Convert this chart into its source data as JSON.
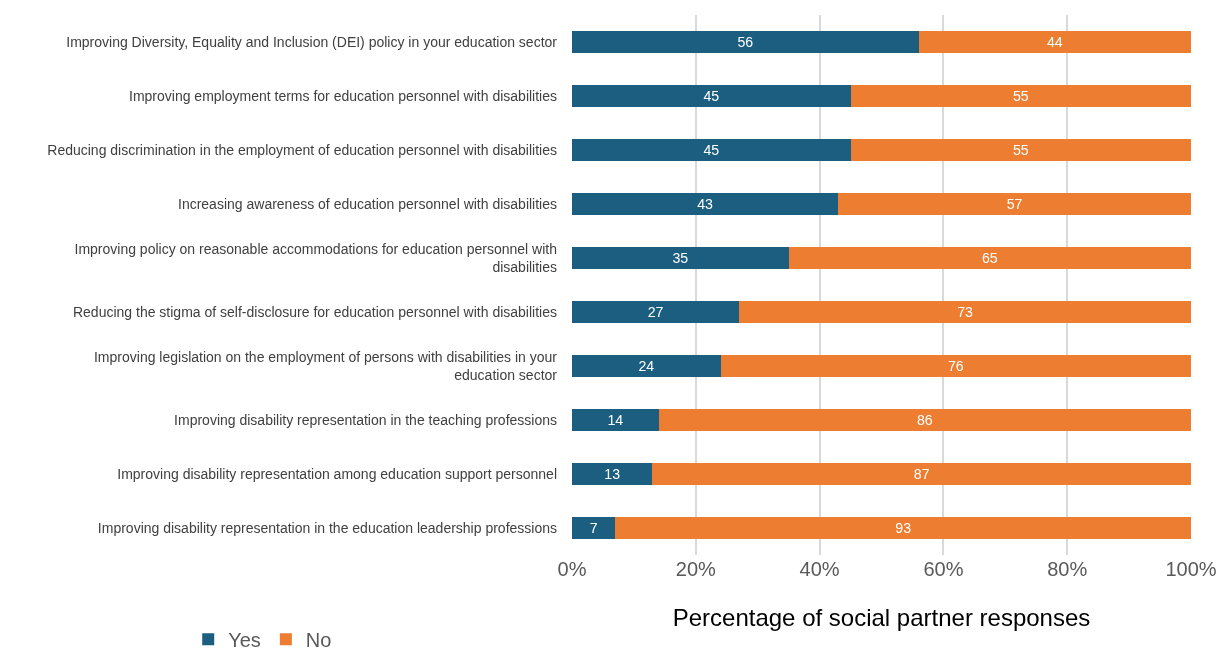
{
  "chart_data": {
    "type": "bar",
    "orientation": "horizontal",
    "stacked": true,
    "xlabel": "Percentage of social partner responses",
    "categories": [
      "Improving Diversity, Equality and Inclusion (DEI) policy in your education sector",
      "Improving employment terms for education personnel with disabilities",
      "Reducing discrimination in the employment of education personnel with disabilities",
      "Increasing awareness of education personnel with disabilities",
      "Improving policy on reasonable accommodations for education personnel with disabilities",
      "Reducing the stigma of self-disclosure for education personnel with disabilities",
      "Improving legislation on the employment of persons with disabilities in your education sector",
      "Improving disability representation in the teaching professions",
      "Improving disability representation among education support personnel",
      "Improving disability representation in the education leadership professions"
    ],
    "series": [
      {
        "name": "Yes",
        "color": "#1b5e80",
        "values": [
          56,
          45,
          45,
          43,
          35,
          27,
          24,
          14,
          13,
          7
        ]
      },
      {
        "name": "No",
        "color": "#ed7d31",
        "values": [
          44,
          55,
          55,
          57,
          65,
          73,
          76,
          86,
          87,
          93
        ]
      }
    ],
    "xlim": [
      0,
      100
    ],
    "xticks": [
      {
        "value": 0,
        "label": "0%"
      },
      {
        "value": 20,
        "label": "20%"
      },
      {
        "value": 40,
        "label": "40%"
      },
      {
        "value": 60,
        "label": "60%"
      },
      {
        "value": 80,
        "label": "80%"
      },
      {
        "value": 100,
        "label": "100%"
      }
    ],
    "grid": "x",
    "legend": "bottom left",
    "data_labels": true
  }
}
